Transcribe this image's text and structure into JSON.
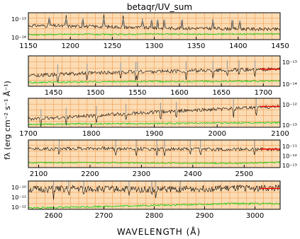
{
  "title": "betaqr/UV_sum",
  "xlabel": "WAVELENGTH (Å)",
  "ylabel": "fλ (erg cm⁻² s⁻¹ Å⁻¹)",
  "colors": {
    "background": "#fbdcb4",
    "grid": "#f07a1c",
    "spectrum": "#000000",
    "error": "#00cc00",
    "continuum_fit": "#ff0000",
    "features": "#a0a0a0"
  },
  "chart_data": [
    {
      "type": "line",
      "panel": 1,
      "xlim": [
        1150,
        1450
      ],
      "x_ticks": [
        "1150",
        "1200",
        "1250",
        "1300",
        "1350",
        "1400",
        "1450"
      ],
      "x_tick_values": [
        1150,
        1200,
        1250,
        1300,
        1350,
        1400,
        1450
      ],
      "y_ticks": [
        "10⁻¹³",
        "10⁻¹⁴"
      ],
      "y_tick_side": "left",
      "series": [
        {
          "values": [
            [
              1150,
              0.52
            ],
            [
              1170,
              0.52
            ],
            [
              1200,
              0.5
            ],
            [
              1250,
              0.48
            ],
            [
              1300,
              0.43
            ],
            [
              1350,
              0.42
            ],
            [
              1400,
              0.4
            ],
            [
              1450,
              0.38
            ]
          ]
        },
        {
          "values": [
            [
              1150,
              0.18
            ],
            [
              1200,
              0.2
            ],
            [
              1250,
              0.19
            ],
            [
              1300,
              0.21
            ],
            [
              1350,
              0.2
            ],
            [
              1400,
              0.21
            ],
            [
              1450,
              0.21
            ]
          ]
        }
      ],
      "features": [
        1175,
        1195,
        1215,
        1240,
        1263,
        1286,
        1297,
        1304,
        1312,
        1333,
        1370,
        1393,
        1402
      ]
    },
    {
      "type": "line",
      "panel": 2,
      "xlim": [
        1420,
        1720
      ],
      "x_ticks": [
        "1450",
        "1500",
        "1550",
        "1600",
        "1650",
        "1700"
      ],
      "x_tick_values": [
        1450,
        1500,
        1550,
        1600,
        1650,
        1700
      ],
      "y_ticks": [
        "10⁻¹³",
        "10⁻¹⁴"
      ],
      "y_tick_side": "right",
      "series": [
        {
          "values": [
            [
              1420,
              0.35
            ],
            [
              1480,
              0.42
            ],
            [
              1550,
              0.48
            ],
            [
              1600,
              0.5
            ],
            [
              1650,
              0.53
            ],
            [
              1700,
              0.55
            ],
            [
              1720,
              0.56
            ]
          ]
        },
        {
          "values": [
            [
              1420,
              0.12
            ],
            [
              1500,
              0.15
            ],
            [
              1600,
              0.16
            ],
            [
              1700,
              0.17
            ],
            [
              1720,
              0.17
            ]
          ]
        }
      ],
      "features": [
        1455,
        1490,
        1530,
        1548,
        1550,
        1608,
        1640,
        1657,
        1671,
        1690
      ]
    },
    {
      "type": "line",
      "panel": 3,
      "xlim": [
        1700,
        2100
      ],
      "x_ticks": [
        "1700",
        "1800",
        "1900",
        "2000",
        "2100"
      ],
      "x_tick_values": [
        1700,
        1800,
        1900,
        2000,
        2100
      ],
      "y_ticks": [
        "10⁻¹²",
        "10⁻¹³"
      ],
      "y_tick_side": "right",
      "series": [
        {
          "values": [
            [
              1700,
              0.28
            ],
            [
              1800,
              0.4
            ],
            [
              1900,
              0.52
            ],
            [
              2000,
              0.62
            ],
            [
              2100,
              0.72
            ]
          ]
        },
        {
          "values": [
            [
              1700,
              0.1
            ],
            [
              1800,
              0.12
            ],
            [
              1900,
              0.13
            ],
            [
              2000,
              0.15
            ],
            [
              2100,
              0.16
            ]
          ]
        }
      ],
      "features": [
        1720,
        1760,
        1808,
        1855,
        1910,
        1935,
        2026,
        2062
      ]
    },
    {
      "type": "line",
      "panel": 4,
      "xlim": [
        2080,
        2570
      ],
      "x_ticks": [
        "2100",
        "2200",
        "2300",
        "2400",
        "2500"
      ],
      "x_tick_values": [
        2100,
        2200,
        2300,
        2400,
        2500
      ],
      "y_ticks": [
        "10⁻¹¹",
        "10⁻¹²",
        "10⁻¹³"
      ],
      "y_tick_side": "right",
      "series": [
        {
          "values": [
            [
              2080,
              0.68
            ],
            [
              2200,
              0.7
            ],
            [
              2300,
              0.68
            ],
            [
              2400,
              0.67
            ],
            [
              2500,
              0.66
            ],
            [
              2570,
              0.67
            ]
          ]
        },
        {
          "values": [
            [
              2080,
              0.18
            ],
            [
              2200,
              0.18
            ],
            [
              2300,
              0.17
            ],
            [
              2400,
              0.16
            ],
            [
              2500,
              0.16
            ],
            [
              2570,
              0.2
            ]
          ]
        }
      ],
      "features": [
        2140,
        2250,
        2290,
        2330,
        2345,
        2395,
        2415,
        2520
      ]
    },
    {
      "type": "line",
      "panel": 5,
      "xlim": [
        2550,
        3050
      ],
      "x_ticks": [
        "2600",
        "2700",
        "2800",
        "2900",
        "3000"
      ],
      "x_tick_values": [
        2600,
        2700,
        2800,
        2900,
        3000
      ],
      "y_ticks": [
        "10⁻¹⁰",
        "10⁻¹¹",
        "10⁻¹²"
      ],
      "y_tick_side": "left",
      "series": [
        {
          "values": [
            [
              2550,
              0.7
            ],
            [
              2650,
              0.73
            ],
            [
              2700,
              0.72
            ],
            [
              2800,
              0.7
            ],
            [
              2850,
              0.72
            ],
            [
              2900,
              0.73
            ],
            [
              2980,
              0.74
            ]
          ]
        },
        {
          "values": [
            [
              2550,
              0.05
            ],
            [
              2650,
              0.08
            ],
            [
              2750,
              0.12
            ],
            [
              2850,
              0.16
            ],
            [
              2950,
              0.2
            ],
            [
              2980,
              0.2
            ]
          ]
        }
      ],
      "features": [
        2600,
        2630,
        2660,
        2750,
        2795,
        2803,
        2852
      ]
    }
  ]
}
